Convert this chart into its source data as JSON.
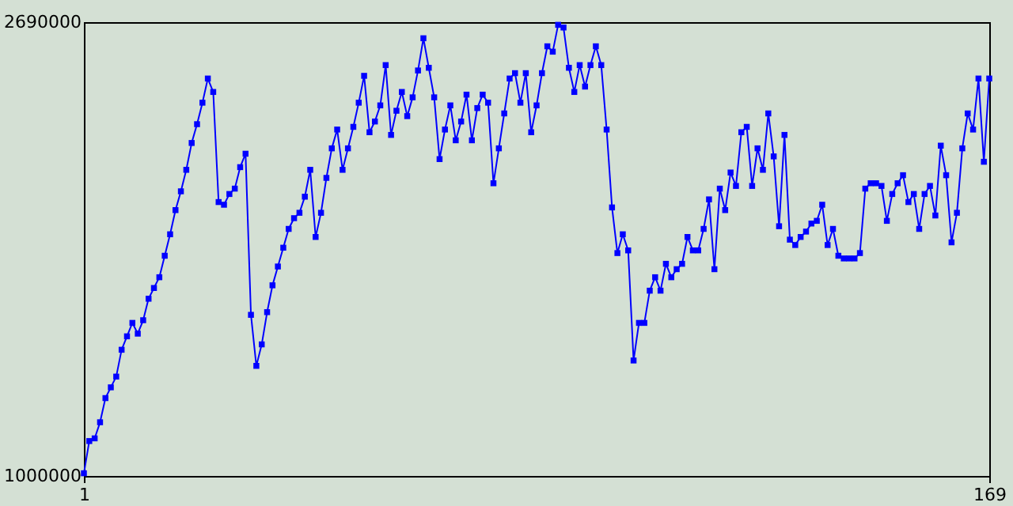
{
  "chart_data": {
    "type": "line",
    "marker": "square",
    "grid": false,
    "legend": false,
    "x": [
      1,
      2,
      3,
      4,
      5,
      6,
      7,
      8,
      9,
      10,
      11,
      12,
      13,
      14,
      15,
      16,
      17,
      18,
      19,
      20,
      21,
      22,
      23,
      24,
      25,
      26,
      27,
      28,
      29,
      30,
      31,
      32,
      33,
      34,
      35,
      36,
      37,
      38,
      39,
      40,
      41,
      42,
      43,
      44,
      45,
      46,
      47,
      48,
      49,
      50,
      51,
      52,
      53,
      54,
      55,
      56,
      57,
      58,
      59,
      60,
      61,
      62,
      63,
      64,
      65,
      66,
      67,
      68,
      69,
      70,
      71,
      72,
      73,
      74,
      75,
      76,
      77,
      78,
      79,
      80,
      81,
      82,
      83,
      84,
      85,
      86,
      87,
      88,
      89,
      90,
      91,
      92,
      93,
      94,
      95,
      96,
      97,
      98,
      99,
      100,
      101,
      102,
      103,
      104,
      105,
      106,
      107,
      108,
      109,
      110,
      111,
      112,
      113,
      114,
      115,
      116,
      117,
      118,
      119,
      120,
      121,
      122,
      123,
      124,
      125,
      126,
      127,
      128,
      129,
      130,
      131,
      132,
      133,
      134,
      135,
      136,
      137,
      138,
      139,
      140,
      141,
      142,
      143,
      144,
      145,
      146,
      147,
      148,
      149,
      150,
      151,
      152,
      153,
      154,
      155,
      156,
      157,
      158,
      159,
      160,
      161,
      162,
      163,
      164,
      165,
      166,
      167,
      168,
      169
    ],
    "series": [
      {
        "color": "#0000ff",
        "values": [
          1010000,
          1130000,
          1140000,
          1200000,
          1290000,
          1330000,
          1370000,
          1470000,
          1520000,
          1570000,
          1530000,
          1580000,
          1660000,
          1700000,
          1740000,
          1820000,
          1900000,
          1990000,
          2060000,
          2140000,
          2240000,
          2310000,
          2390000,
          2480000,
          2430000,
          2020000,
          2010000,
          2050000,
          2070000,
          2150000,
          2200000,
          1600000,
          1410000,
          1490000,
          1610000,
          1710000,
          1780000,
          1850000,
          1920000,
          1960000,
          1980000,
          2040000,
          2140000,
          1890000,
          1980000,
          2110000,
          2220000,
          2290000,
          2140000,
          2220000,
          2300000,
          2390000,
          2490000,
          2280000,
          2320000,
          2380000,
          2530000,
          2270000,
          2360000,
          2430000,
          2340000,
          2410000,
          2510000,
          2630000,
          2520000,
          2410000,
          2180000,
          2290000,
          2380000,
          2250000,
          2320000,
          2420000,
          2250000,
          2370000,
          2420000,
          2390000,
          2090000,
          2220000,
          2350000,
          2480000,
          2500000,
          2390000,
          2500000,
          2280000,
          2380000,
          2500000,
          2600000,
          2580000,
          2680000,
          2670000,
          2520000,
          2430000,
          2530000,
          2450000,
          2530000,
          2600000,
          2530000,
          2290000,
          2000000,
          1830000,
          1900000,
          1840000,
          1430000,
          1570000,
          1570000,
          1690000,
          1740000,
          1690000,
          1790000,
          1740000,
          1770000,
          1790000,
          1890000,
          1840000,
          1840000,
          1920000,
          2030000,
          1770000,
          2070000,
          1990000,
          2130000,
          2080000,
          2280000,
          2300000,
          2080000,
          2220000,
          2140000,
          2350000,
          2190000,
          1930000,
          2270000,
          1880000,
          1860000,
          1890000,
          1910000,
          1940000,
          1950000,
          2010000,
          1860000,
          1920000,
          1820000,
          1810000,
          1810000,
          1810000,
          1830000,
          2070000,
          2090000,
          2090000,
          2080000,
          1950000,
          2050000,
          2090000,
          2120000,
          2020000,
          2050000,
          1920000,
          2050000,
          2080000,
          1970000,
          2230000,
          2120000,
          1870000,
          1980000,
          2220000,
          2350000,
          2290000,
          2480000,
          2170000,
          2480000
        ]
      }
    ],
    "xlim": [
      1,
      169
    ],
    "xticks": [
      1,
      169
    ],
    "ylim": [
      1000000,
      2690000
    ],
    "yticks": [
      1000000,
      2690000
    ]
  }
}
